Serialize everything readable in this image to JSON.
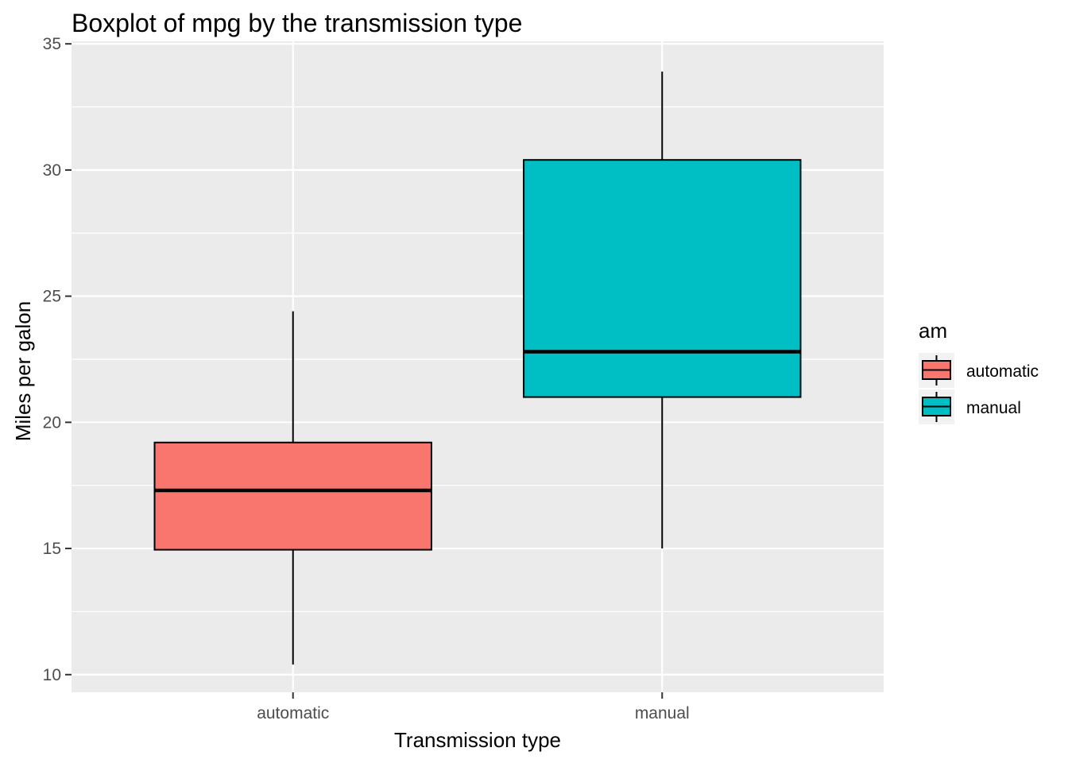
{
  "chart_data": {
    "type": "boxplot",
    "title": "Boxplot of mpg by the transmission type",
    "xlabel": "Transmission type",
    "ylabel": "Miles per galon",
    "ylim": [
      9.3,
      35.1
    ],
    "y_ticks": [
      "10",
      "15",
      "20",
      "25",
      "30",
      "35"
    ],
    "grid": true,
    "legend": {
      "title": "am",
      "placement": "right"
    },
    "categories": [
      "automatic",
      "manual"
    ],
    "series": [
      {
        "name": "automatic",
        "color": "#F8766D",
        "whisker_low": 10.4,
        "q1": 14.95,
        "median": 17.3,
        "q3": 19.2,
        "whisker_high": 24.4
      },
      {
        "name": "manual",
        "color": "#00BFC4",
        "whisker_low": 15.0,
        "q1": 21.0,
        "median": 22.8,
        "q3": 30.4,
        "whisker_high": 33.9
      }
    ]
  }
}
